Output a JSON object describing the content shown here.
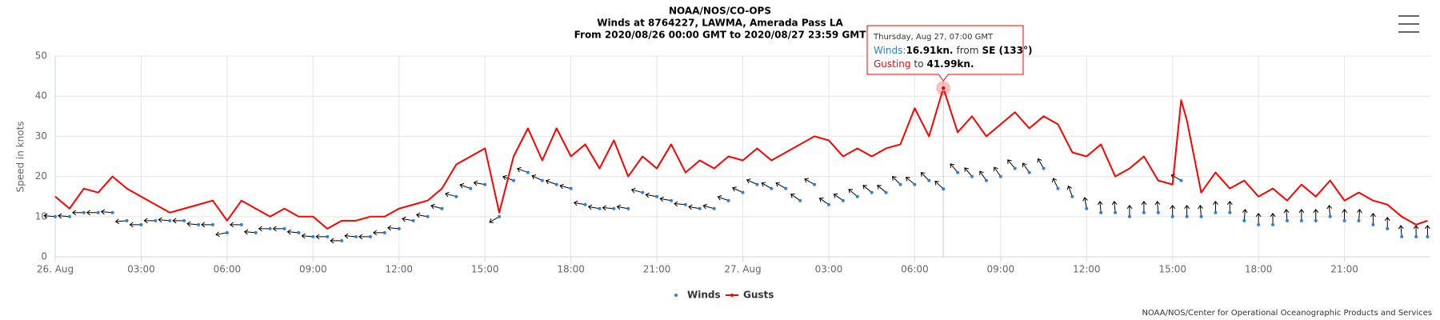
{
  "chart_data": {
    "type": "line",
    "title": "NOAA/NOS/CO-OPS",
    "subtitle": "Winds at 8764227, LAWMA, Amerada Pass LA",
    "subtitle2": "From 2020/08/26 00:00 GMT to 2020/08/27 23:59 GMT",
    "y_label": "Speed in knots",
    "credits": "NOAA/NOS/Center for Operational Oceanographic Products and Services",
    "grid": true,
    "legend": "bottom",
    "xlim": [
      0,
      48
    ],
    "xticks": [
      {
        "value": 0,
        "label": "26. Aug"
      },
      {
        "value": 3,
        "label": "03:00"
      },
      {
        "value": 6,
        "label": "06:00"
      },
      {
        "value": 9,
        "label": "09:00"
      },
      {
        "value": 12,
        "label": "12:00"
      },
      {
        "value": 15,
        "label": "15:00"
      },
      {
        "value": 18,
        "label": "18:00"
      },
      {
        "value": 21,
        "label": "21:00"
      },
      {
        "value": 24,
        "label": "27. Aug"
      },
      {
        "value": 27,
        "label": "03:00"
      },
      {
        "value": 30,
        "label": "06:00"
      },
      {
        "value": 33,
        "label": "09:00"
      },
      {
        "value": 36,
        "label": "12:00"
      },
      {
        "value": 39,
        "label": "15:00"
      },
      {
        "value": 42,
        "label": "18:00"
      },
      {
        "value": 45,
        "label": "21:00"
      }
    ],
    "ylim": [
      0,
      50
    ],
    "yticks": [
      0,
      10,
      20,
      30,
      40,
      50
    ],
    "x": [
      0,
      0.5,
      1,
      1.5,
      2,
      2.5,
      3,
      3.5,
      4,
      4.5,
      5,
      5.5,
      6,
      6.5,
      7,
      7.5,
      8,
      8.5,
      9,
      9.5,
      10,
      10.5,
      11,
      11.5,
      12,
      12.5,
      13,
      13.5,
      14,
      14.5,
      15,
      15.5,
      16,
      16.5,
      17,
      17.5,
      18,
      18.5,
      19,
      19.5,
      20,
      20.5,
      21,
      21.5,
      22,
      22.5,
      23,
      23.5,
      24,
      24.5,
      25,
      25.5,
      26,
      26.5,
      27,
      27.5,
      28,
      28.5,
      29,
      29.5,
      30,
      30.5,
      31,
      31.5,
      32,
      32.5,
      33,
      33.5,
      34,
      34.5,
      35,
      35.5,
      36,
      36.5,
      37,
      37.5,
      38,
      38.5,
      39,
      39.3,
      39.5,
      40,
      40.5,
      41,
      41.5,
      42,
      42.5,
      43,
      43.5,
      44,
      44.5,
      45,
      45.5,
      46,
      46.5,
      47,
      47.5,
      47.9
    ],
    "series": [
      {
        "name": "Winds",
        "color": "#2f7ed8",
        "marker": "arrow",
        "values": [
          10,
          10,
          11,
          11,
          11,
          9,
          8,
          9,
          9,
          9,
          8,
          8,
          6,
          8,
          6,
          7,
          7,
          6,
          5,
          5,
          4,
          5,
          5,
          6,
          7,
          9,
          10,
          12,
          15,
          17,
          18,
          10,
          19,
          21,
          19,
          18,
          17,
          13,
          12,
          12,
          12,
          16,
          15,
          14,
          13,
          12,
          12,
          14,
          16,
          18,
          17,
          17,
          14,
          18,
          13,
          14,
          15,
          16,
          16,
          18,
          18,
          19,
          16.91,
          21,
          20,
          19,
          20,
          22,
          21,
          22,
          17,
          15,
          12,
          11,
          11,
          10,
          11,
          11,
          10,
          19,
          10,
          10,
          11,
          11,
          9,
          8,
          8,
          9,
          9,
          9,
          10,
          9,
          9,
          8,
          7,
          5,
          5,
          5
        ],
        "directions": [
          95,
          95,
          90,
          90,
          95,
          85,
          90,
          90,
          95,
          90,
          95,
          90,
          80,
          90,
          95,
          90,
          90,
          95,
          95,
          90,
          90,
          95,
          90,
          90,
          95,
          100,
          100,
          105,
          105,
          110,
          100,
          60,
          110,
          110,
          115,
          110,
          105,
          100,
          100,
          95,
          100,
          105,
          100,
          100,
          95,
          100,
          105,
          110,
          115,
          115,
          120,
          120,
          125,
          120,
          125,
          125,
          130,
          130,
          130,
          135,
          130,
          135,
          133,
          140,
          140,
          145,
          145,
          140,
          145,
          150,
          155,
          160,
          170,
          175,
          175,
          180,
          180,
          175,
          180,
          120,
          180,
          175,
          180,
          180,
          185,
          180,
          180,
          175,
          180,
          180,
          175,
          180,
          185,
          180,
          180,
          175,
          180,
          180
        ]
      },
      {
        "name": "Gusts",
        "color": "#ff0000",
        "marker": "line",
        "values": [
          15,
          12,
          17,
          16,
          20,
          17,
          15,
          13,
          11,
          12,
          13,
          14,
          9,
          14,
          12,
          10,
          12,
          10,
          10,
          7,
          9,
          9,
          10,
          10,
          12,
          13,
          14,
          17,
          23,
          25,
          27,
          11,
          25,
          32,
          24,
          32,
          25,
          28,
          22,
          29,
          20,
          25,
          22,
          28,
          21,
          24,
          22,
          25,
          24,
          27,
          24,
          26,
          28,
          30,
          29,
          25,
          27,
          25,
          27,
          28,
          37,
          30,
          41.99,
          31,
          35,
          30,
          33,
          36,
          32,
          35,
          33,
          26,
          25,
          28,
          20,
          22,
          25,
          19,
          18,
          39,
          34,
          16,
          21,
          17,
          19,
          15,
          17,
          14,
          18,
          15,
          19,
          14,
          16,
          14,
          13,
          10,
          8,
          9
        ]
      }
    ],
    "tooltip": {
      "index": 62,
      "header": "Thursday, Aug 27, 07:00 GMT",
      "winds_label": "Winds:",
      "winds_value": "16.91kn.",
      "winds_from": "from",
      "winds_dir": "SE (133°)",
      "gust_label": "Gusting",
      "gust_to": "to",
      "gust_value": "41.99kn."
    }
  }
}
